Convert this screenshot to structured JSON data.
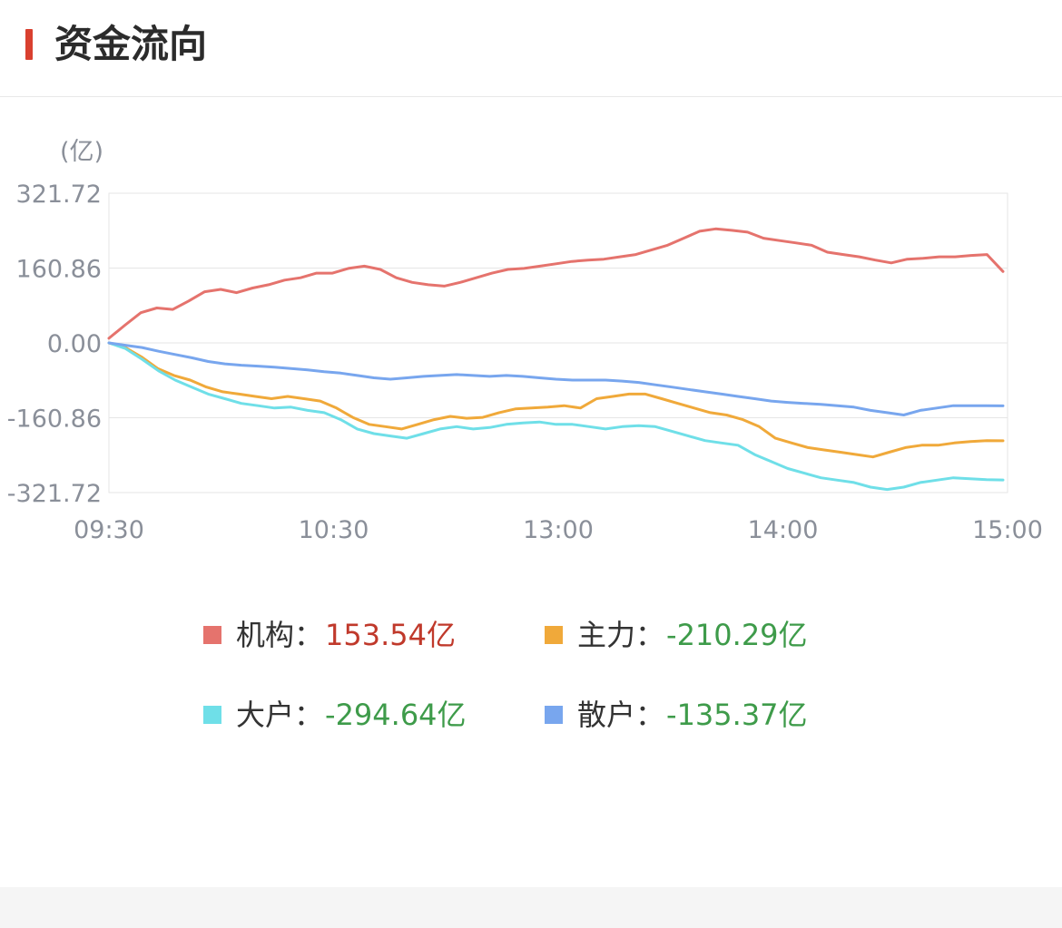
{
  "header": {
    "title": "资金流向"
  },
  "colors": {
    "accent": "#d9402f",
    "positive": "#c0392b",
    "negative": "#3e9b4a"
  },
  "chart_data": {
    "type": "line",
    "unit_label": "(亿)",
    "y_ticks": [
      "321.72",
      "160.86",
      "0.00",
      "-160.86",
      "-321.72"
    ],
    "ylim": [
      -321.72,
      321.72
    ],
    "x_ticks": [
      "09:30",
      "10:30",
      "13:00",
      "14:00",
      "15:00"
    ],
    "grid": true,
    "series": [
      {
        "name": "机构",
        "color": "#e5736d",
        "values": [
          10,
          38,
          65,
          75,
          72,
          90,
          110,
          115,
          108,
          118,
          125,
          135,
          140,
          150,
          150,
          160,
          165,
          158,
          140,
          130,
          125,
          122,
          130,
          140,
          150,
          158,
          160,
          165,
          170,
          175,
          178,
          180,
          185,
          190,
          200,
          210,
          225,
          240,
          245,
          242,
          238,
          225,
          220,
          215,
          210,
          195,
          190,
          185,
          178,
          172,
          180,
          182,
          185,
          185,
          188,
          190,
          153.54
        ]
      },
      {
        "name": "主力",
        "color": "#f0a93a",
        "values": [
          0,
          -10,
          -30,
          -55,
          -70,
          -80,
          -95,
          -105,
          -110,
          -115,
          -120,
          -115,
          -120,
          -125,
          -140,
          -160,
          -175,
          -180,
          -185,
          -175,
          -165,
          -158,
          -162,
          -160,
          -150,
          -142,
          -140,
          -138,
          -135,
          -140,
          -120,
          -115,
          -110,
          -110,
          -120,
          -130,
          -140,
          -150,
          -155,
          -165,
          -180,
          -205,
          -215,
          -225,
          -230,
          -235,
          -240,
          -245,
          -235,
          -225,
          -220,
          -220,
          -215,
          -212,
          -210,
          -210.29
        ]
      },
      {
        "name": "大户",
        "color": "#6fdfe8",
        "values": [
          0,
          -12,
          -35,
          -60,
          -80,
          -95,
          -110,
          -120,
          -130,
          -135,
          -140,
          -138,
          -145,
          -150,
          -165,
          -185,
          -195,
          -200,
          -205,
          -195,
          -185,
          -180,
          -185,
          -182,
          -175,
          -172,
          -170,
          -175,
          -175,
          -180,
          -185,
          -180,
          -178,
          -180,
          -190,
          -200,
          -210,
          -215,
          -220,
          -240,
          -255,
          -270,
          -280,
          -290,
          -295,
          -300,
          -310,
          -315,
          -310,
          -300,
          -295,
          -290,
          -292,
          -294,
          -294.64
        ]
      },
      {
        "name": "散户",
        "color": "#78a6ee",
        "values": [
          0,
          -5,
          -10,
          -18,
          -25,
          -32,
          -40,
          -45,
          -48,
          -50,
          -52,
          -55,
          -58,
          -62,
          -65,
          -70,
          -75,
          -78,
          -75,
          -72,
          -70,
          -68,
          -70,
          -72,
          -70,
          -72,
          -75,
          -78,
          -80,
          -80,
          -80,
          -82,
          -85,
          -90,
          -95,
          -100,
          -105,
          -110,
          -115,
          -120,
          -125,
          -128,
          -130,
          -132,
          -135,
          -138,
          -145,
          -150,
          -155,
          -145,
          -140,
          -135,
          -135,
          -135,
          -135.37
        ]
      }
    ]
  },
  "legend": [
    {
      "label": "机构：",
      "value": "153.54亿",
      "color": "#e5736d",
      "value_color": "#c0392b"
    },
    {
      "label": "主力：",
      "value": "-210.29亿",
      "color": "#f0a93a",
      "value_color": "#3e9b4a"
    },
    {
      "label": "大户：",
      "value": "-294.64亿",
      "color": "#6fdfe8",
      "value_color": "#3e9b4a"
    },
    {
      "label": "散户：",
      "value": "-135.37亿",
      "color": "#78a6ee",
      "value_color": "#3e9b4a"
    }
  ]
}
